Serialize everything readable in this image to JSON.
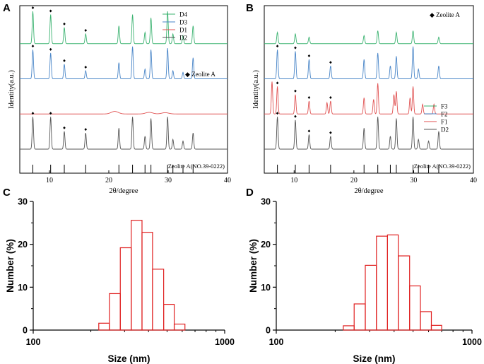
{
  "chart_data": [
    {
      "panel": "A",
      "type": "line",
      "xlabel": "2θ/degree",
      "ylabel": "Identity(a.u.)",
      "xlim": [
        5,
        40
      ],
      "xticks": [
        "10",
        "20",
        "30",
        "40"
      ],
      "xtick_values": [
        10,
        20,
        30,
        40
      ],
      "legend": [
        "D4",
        "D3",
        "D1",
        "D2"
      ],
      "legend_colors": [
        "#3cb371",
        "#4a86c8",
        "#e05252",
        "#555555"
      ],
      "marker_label": "◆ Zeolite A",
      "reference_label": "Zeolite A(NO.39-0222)",
      "reference_peaks": [
        7.2,
        10.2,
        12.5,
        16.1,
        21.7,
        24.0,
        26.1,
        27.1,
        29.9,
        30.8,
        32.5,
        34.2
      ],
      "series": [
        {
          "name": "D4",
          "kind": "crystalline",
          "peaks": [
            [
              7.2,
              1.0
            ],
            [
              10.2,
              0.9
            ],
            [
              12.5,
              0.5
            ],
            [
              16.1,
              0.3
            ],
            [
              21.7,
              0.55
            ],
            [
              24.0,
              0.9
            ],
            [
              26.1,
              0.35
            ],
            [
              27.1,
              0.8
            ],
            [
              29.9,
              1.0
            ],
            [
              30.8,
              0.3
            ],
            [
              32.5,
              0.25
            ],
            [
              34.2,
              0.55
            ]
          ],
          "marked": [
            7.2,
            10.2,
            12.5,
            16.1
          ]
        },
        {
          "name": "D3",
          "kind": "crystalline",
          "peaks": [
            [
              7.2,
              0.9
            ],
            [
              10.2,
              0.8
            ],
            [
              12.5,
              0.45
            ],
            [
              16.1,
              0.25
            ],
            [
              21.7,
              0.5
            ],
            [
              24.0,
              1.0
            ],
            [
              26.1,
              0.3
            ],
            [
              27.1,
              0.9
            ],
            [
              29.9,
              0.95
            ],
            [
              30.8,
              0.25
            ],
            [
              32.5,
              0.2
            ],
            [
              34.2,
              0.65
            ]
          ],
          "marked": [
            7.2,
            10.2,
            12.5,
            16.1
          ]
        },
        {
          "name": "D1",
          "kind": "amorphous",
          "peaks": [
            [
              21.0,
              0.08
            ],
            [
              26.8,
              0.05
            ],
            [
              29.5,
              0.04
            ]
          ],
          "marked": []
        },
        {
          "name": "D2",
          "kind": "crystalline",
          "peaks": [
            [
              7.2,
              1.0
            ],
            [
              10.2,
              1.0
            ],
            [
              12.5,
              0.55
            ],
            [
              16.1,
              0.5
            ],
            [
              21.7,
              0.65
            ],
            [
              24.0,
              1.0
            ],
            [
              26.1,
              0.4
            ],
            [
              27.1,
              0.95
            ],
            [
              29.9,
              1.0
            ],
            [
              30.8,
              0.3
            ],
            [
              32.5,
              0.25
            ],
            [
              34.2,
              0.5
            ]
          ],
          "marked": [
            7.2,
            10.2,
            12.5,
            16.1
          ]
        }
      ]
    },
    {
      "panel": "B",
      "type": "line",
      "xlabel": "2θ/degree",
      "ylabel": "Identity(a.u.)",
      "xlim": [
        5,
        40
      ],
      "xticks": [
        "10",
        "20",
        "30",
        "40"
      ],
      "xtick_values": [
        10,
        20,
        30,
        40
      ],
      "legend": [
        "F3",
        "F2",
        "F1",
        "D2"
      ],
      "legend_colors": [
        "#3cb371",
        "#4a86c8",
        "#e05252",
        "#555555"
      ],
      "marker_label": "◆ Zeolite A",
      "reference_label": "Zeolite A(NO.39-0222)",
      "reference_peaks": [
        7.2,
        10.2,
        12.5,
        16.1,
        21.7,
        24.0,
        26.1,
        27.1,
        29.9,
        30.8,
        32.5,
        34.2
      ],
      "series": [
        {
          "name": "F3",
          "kind": "crystalline",
          "peaks": [
            [
              7.2,
              0.35
            ],
            [
              10.2,
              0.3
            ],
            [
              12.5,
              0.2
            ],
            [
              21.7,
              0.25
            ],
            [
              24.0,
              0.4
            ],
            [
              27.1,
              0.35
            ],
            [
              29.9,
              0.4
            ],
            [
              34.2,
              0.2
            ]
          ],
          "marked": []
        },
        {
          "name": "F2",
          "kind": "crystalline",
          "peaks": [
            [
              7.2,
              0.9
            ],
            [
              10.2,
              0.85
            ],
            [
              12.5,
              0.6
            ],
            [
              16.1,
              0.4
            ],
            [
              21.7,
              0.6
            ],
            [
              24.0,
              0.8
            ],
            [
              26.1,
              0.4
            ],
            [
              27.1,
              0.7
            ],
            [
              29.9,
              1.0
            ],
            [
              30.8,
              0.3
            ],
            [
              34.2,
              0.4
            ]
          ],
          "marked": [
            7.2,
            10.2,
            12.5,
            16.1
          ]
        },
        {
          "name": "F1",
          "kind": "crystalline",
          "peaks": [
            [
              6.3,
              1.0
            ],
            [
              7.2,
              0.85
            ],
            [
              10.2,
              0.6
            ],
            [
              12.5,
              0.4
            ],
            [
              15.5,
              0.35
            ],
            [
              16.1,
              0.4
            ],
            [
              21.7,
              0.5
            ],
            [
              23.3,
              0.45
            ],
            [
              24.0,
              0.95
            ],
            [
              26.7,
              0.6
            ],
            [
              27.1,
              0.7
            ],
            [
              29.4,
              0.5
            ],
            [
              29.9,
              0.85
            ],
            [
              31.5,
              0.3
            ],
            [
              33.4,
              0.3
            ]
          ],
          "marked": [
            7.2,
            10.2,
            12.5,
            16.1
          ]
        },
        {
          "name": "D2",
          "kind": "crystalline",
          "peaks": [
            [
              7.2,
              1.0
            ],
            [
              10.2,
              0.9
            ],
            [
              12.5,
              0.45
            ],
            [
              16.1,
              0.4
            ],
            [
              21.7,
              0.65
            ],
            [
              24.0,
              1.0
            ],
            [
              26.1,
              0.4
            ],
            [
              27.1,
              0.95
            ],
            [
              29.9,
              1.0
            ],
            [
              30.8,
              0.3
            ],
            [
              32.5,
              0.25
            ],
            [
              34.2,
              0.55
            ]
          ],
          "marked": [
            7.2,
            10.2,
            12.5,
            16.1
          ]
        }
      ]
    },
    {
      "panel": "C",
      "type": "bar",
      "subtype": "histogram",
      "xlabel": "Size (nm)",
      "ylabel": "Number (%)",
      "xscale": "log",
      "xlim": [
        100,
        1000
      ],
      "ylim": [
        0,
        30
      ],
      "xticks": [
        "100",
        "1000"
      ],
      "xtick_values": [
        100,
        1000
      ],
      "yticks": [
        "0",
        "10",
        "20",
        "30"
      ],
      "ytick_values": [
        0,
        10,
        20,
        30
      ],
      "bin_edges": [
        220,
        250,
        285,
        325,
        370,
        420,
        480,
        545,
        620,
        700
      ],
      "values": [
        1.6,
        8.5,
        19.2,
        25.6,
        22.8,
        14.2,
        6.0,
        1.4,
        0.0
      ]
    },
    {
      "panel": "D",
      "type": "bar",
      "subtype": "histogram",
      "xlabel": "Size (nm)",
      "ylabel": "Number (%)",
      "xscale": "log",
      "xlim": [
        100,
        1000
      ],
      "ylim": [
        0,
        30
      ],
      "xticks": [
        "100",
        "1000"
      ],
      "xtick_values": [
        100,
        1000
      ],
      "yticks": [
        "0",
        "10",
        "20",
        "30"
      ],
      "ytick_values": [
        0,
        10,
        20,
        30
      ],
      "bin_edges": [
        220,
        250,
        285,
        325,
        370,
        420,
        480,
        545,
        620,
        700,
        800
      ],
      "values": [
        1.0,
        6.1,
        15.1,
        21.9,
        22.2,
        17.3,
        10.3,
        4.3,
        1.1,
        0.0
      ]
    }
  ]
}
